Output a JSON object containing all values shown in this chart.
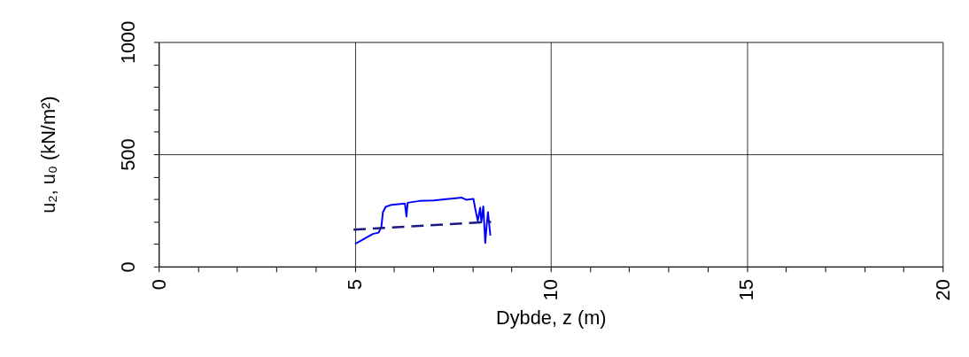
{
  "chart_data": {
    "type": "line",
    "xlabel": "Dybde, z (m)",
    "ylabel": "u₂, u₀ (kN/m²)",
    "xlim": [
      0,
      20
    ],
    "xticks": [
      0,
      {
        "value": 1,
        "label": null
      },
      {
        "value": 2,
        "label": null
      },
      {
        "value": 3,
        "label": null
      },
      {
        "value": 4,
        "label": null
      },
      5,
      {
        "value": 6,
        "label": null
      },
      {
        "value": 7,
        "label": null
      },
      {
        "value": 8,
        "label": null
      },
      {
        "value": 9,
        "label": null
      },
      10,
      {
        "value": 11,
        "label": null
      },
      {
        "value": 12,
        "label": null
      },
      {
        "value": 13,
        "label": null
      },
      {
        "value": 14,
        "label": null
      },
      15,
      {
        "value": 16,
        "label": null
      },
      {
        "value": 17,
        "label": null
      },
      {
        "value": 18,
        "label": null
      },
      {
        "value": 19,
        "label": null
      },
      20
    ],
    "ylim": [
      0,
      1000
    ],
    "yticks": [
      0,
      {
        "value": 100,
        "label": null
      },
      {
        "value": 200,
        "label": null
      },
      {
        "value": 300,
        "label": null
      },
      {
        "value": 400,
        "label": null
      },
      500,
      {
        "value": 600,
        "label": null
      },
      {
        "value": 700,
        "label": null
      },
      {
        "value": 800,
        "label": null
      },
      {
        "value": 900,
        "label": null
      },
      1000
    ],
    "grid": true,
    "series": [
      {
        "color": "#0000ff",
        "line_style": "solid",
        "x": [
          5.01,
          5.46,
          5.61,
          5.68,
          5.72,
          5.79,
          5.94,
          6.28,
          6.32,
          6.35,
          6.65,
          7.02,
          7.4,
          7.73,
          7.85,
          8.03,
          8.07,
          8.14,
          8.2,
          8.23,
          8.28,
          8.33,
          8.37,
          8.4,
          8.46
        ],
        "values": [
          101,
          145,
          151,
          177,
          242,
          266,
          275,
          281,
          223,
          284,
          292,
          294,
          301,
          307,
          297,
          301,
          262,
          203,
          262,
          197,
          268,
          105,
          190,
          242,
          138
        ]
      },
      {
        "color": "#1a1a80",
        "line_style": "dashed",
        "x": [
          4.97,
          8.48
        ],
        "values": [
          164,
          199
        ]
      }
    ]
  }
}
